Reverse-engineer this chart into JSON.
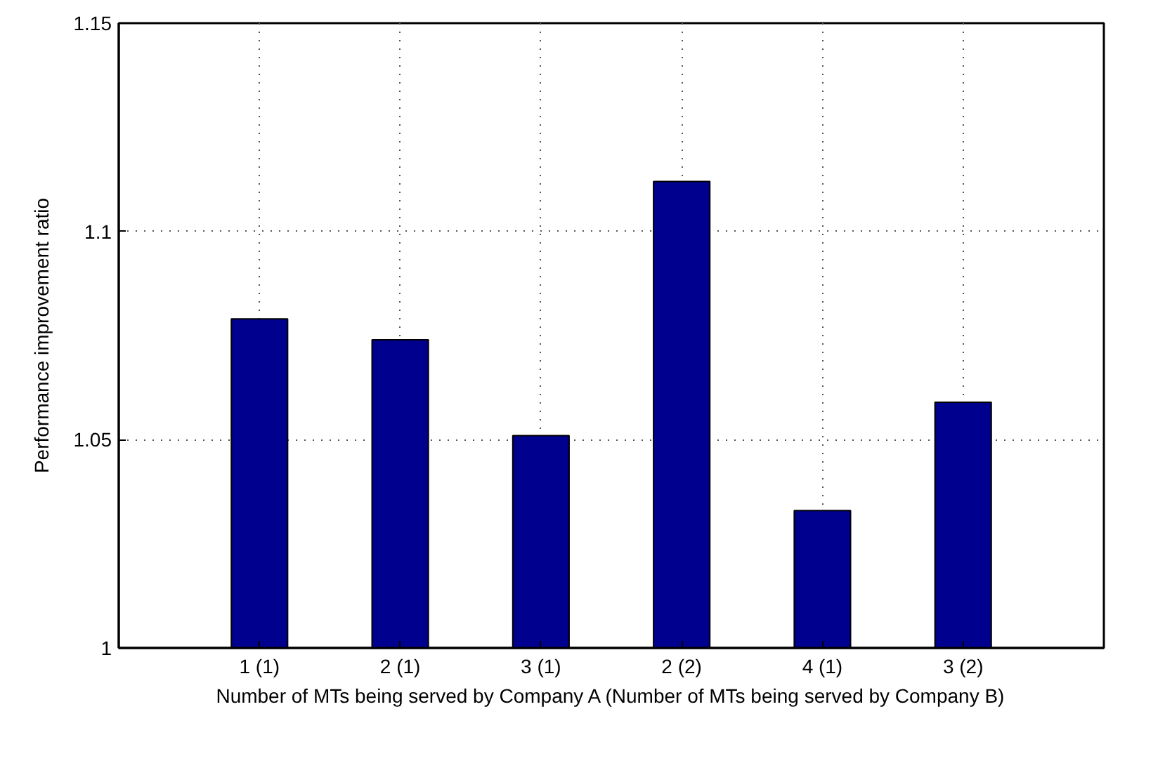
{
  "chart_data": {
    "type": "bar",
    "xlabel": "Number of MTs being served by Company A (Number of MTs being served by Company B)",
    "ylabel": "Performance improvement ratio",
    "categories": [
      "1 (1)",
      "2 (1)",
      "3 (1)",
      "2 (2)",
      "4 (1)",
      "3 (2)"
    ],
    "values": [
      1.079,
      1.074,
      1.051,
      1.112,
      1.033,
      1.059
    ],
    "color": "#00008f",
    "ylim": [
      1,
      1.15
    ],
    "yticks": [
      1,
      1.05,
      1.1,
      1.15
    ],
    "grid": true
  }
}
